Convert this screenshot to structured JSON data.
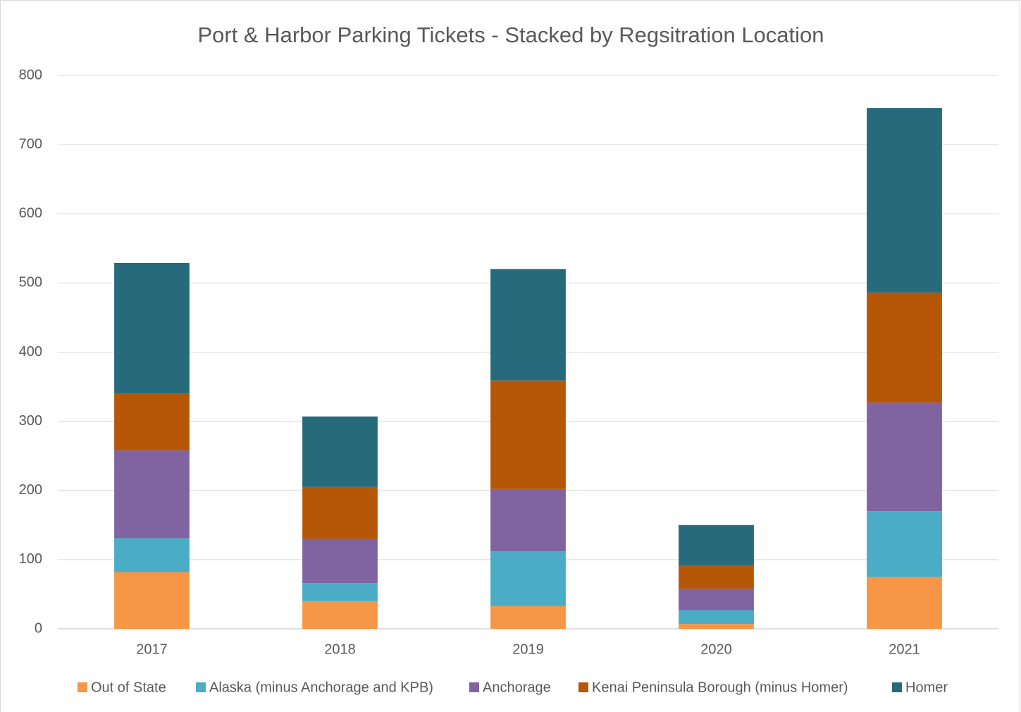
{
  "chart_data": {
    "type": "stacked_bar",
    "title": "Port & Harbor Parking Tickets - Stacked by Regsitration Location",
    "categories": [
      "2017",
      "2018",
      "2019",
      "2020",
      "2021"
    ],
    "series": [
      {
        "name": "Out of State",
        "color": "#f79646",
        "values": [
          82,
          40,
          33,
          7,
          75
        ]
      },
      {
        "name": "Alaska (minus Anchorage and KPB)",
        "color": "#4bacc6",
        "values": [
          49,
          26,
          79,
          20,
          95
        ]
      },
      {
        "name": "Anchorage",
        "color": "#8064a2",
        "values": [
          127,
          64,
          90,
          31,
          157
        ]
      },
      {
        "name": "Kenai Peninsula Borough (minus Homer)",
        "color": "#b65708",
        "values": [
          82,
          75,
          157,
          33,
          159
        ]
      },
      {
        "name": "Homer",
        "color": "#276a7c",
        "values": [
          189,
          102,
          161,
          59,
          267
        ]
      }
    ],
    "ylim": [
      0,
      800
    ],
    "yticks": [
      0,
      100,
      200,
      300,
      400,
      500,
      600,
      700,
      800
    ],
    "grid": true,
    "legend": "bottom"
  }
}
